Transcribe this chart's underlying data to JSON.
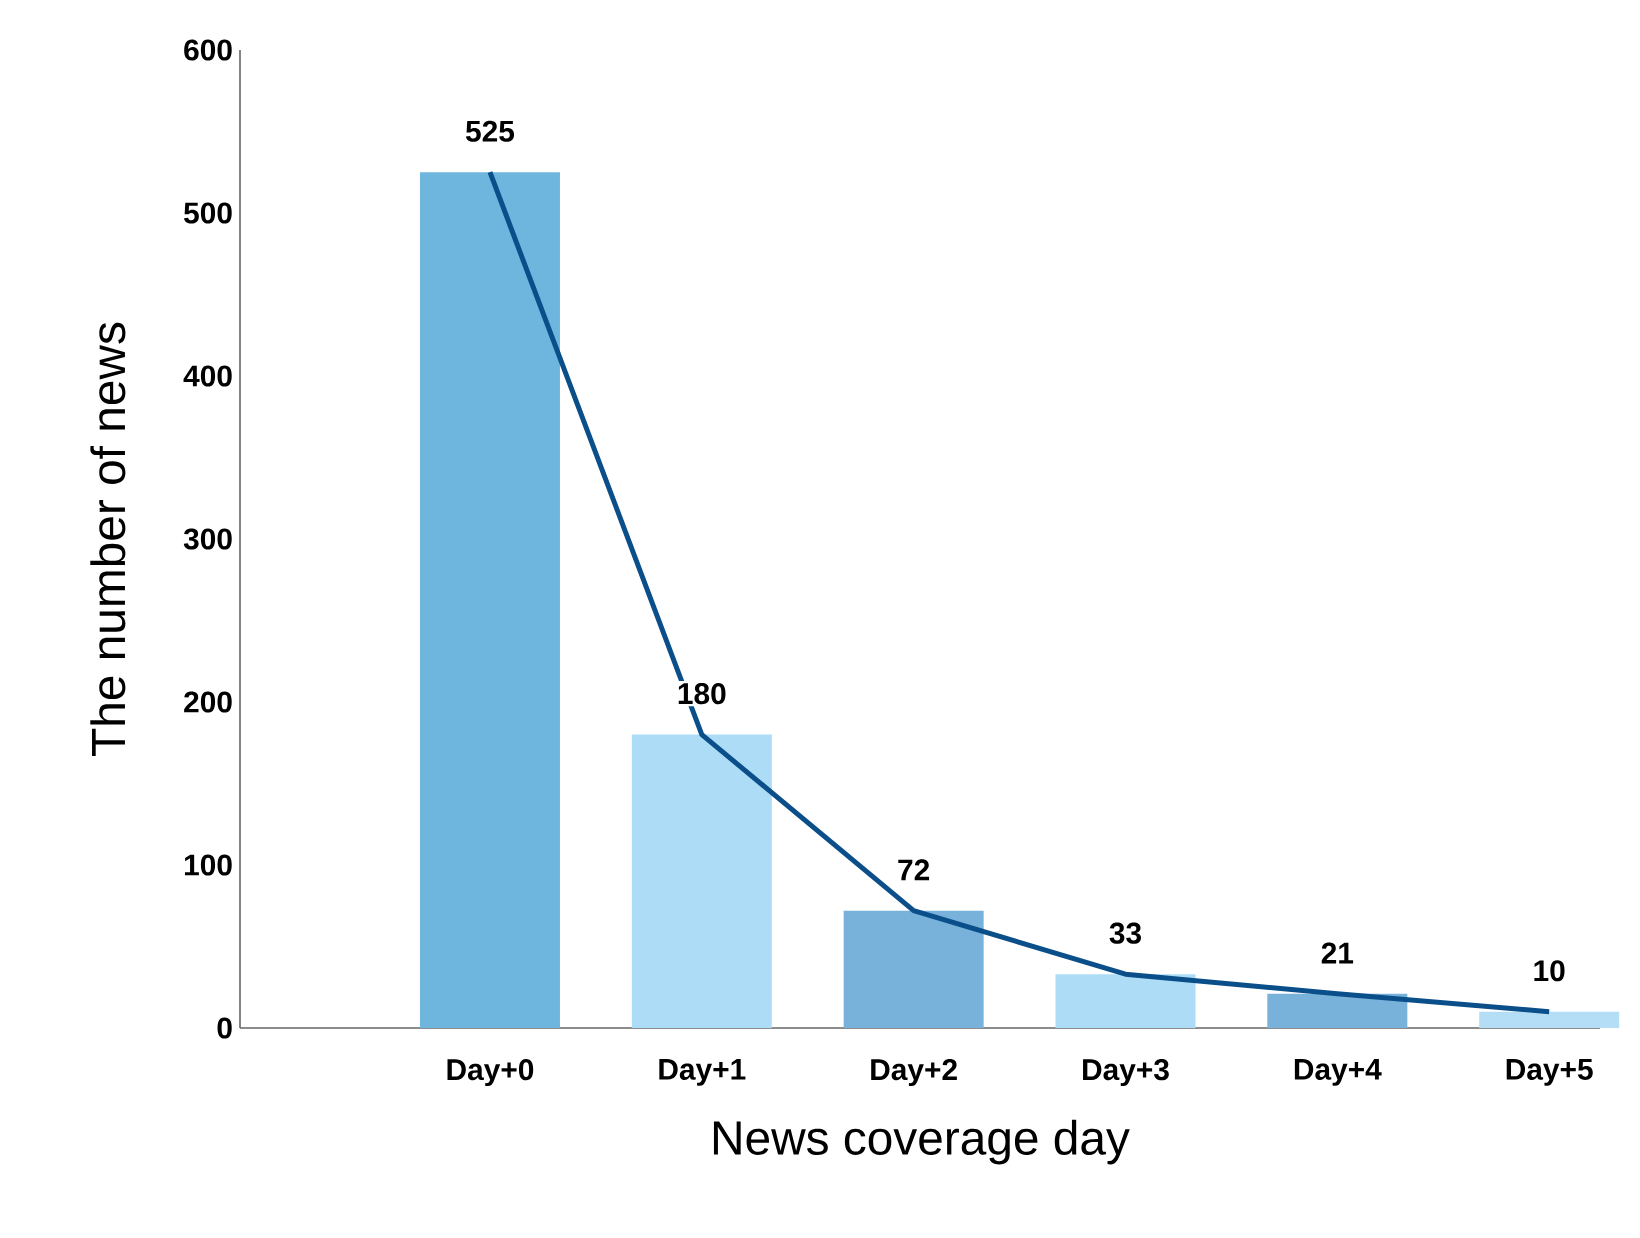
{
  "chart_data": {
    "type": "bar",
    "xlabel": "News coverage day",
    "ylabel": "The number of news",
    "categories": [
      "Day+0",
      "Day+1",
      "Day+2",
      "Day+3",
      "Day+4",
      "Day+5"
    ],
    "series": [
      {
        "values": [
          525,
          180,
          72,
          33,
          21,
          10
        ],
        "value_labels": [
          "525",
          "180",
          "72",
          "33",
          "21",
          "10"
        ],
        "colors": [
          "#6fb6df",
          "#acdcf6",
          "#78b1d9",
          "#acdcf6",
          "#78b1d9",
          "#b3def6"
        ]
      },
      {
        "type": "line",
        "values": [
          525,
          180,
          72,
          33,
          21,
          10
        ],
        "color": "#0b4f8a"
      }
    ],
    "ylim": [
      0,
      600
    ],
    "yticks": [
      0,
      100,
      200,
      300,
      400,
      500,
      600
    ],
    "grid": false
  }
}
